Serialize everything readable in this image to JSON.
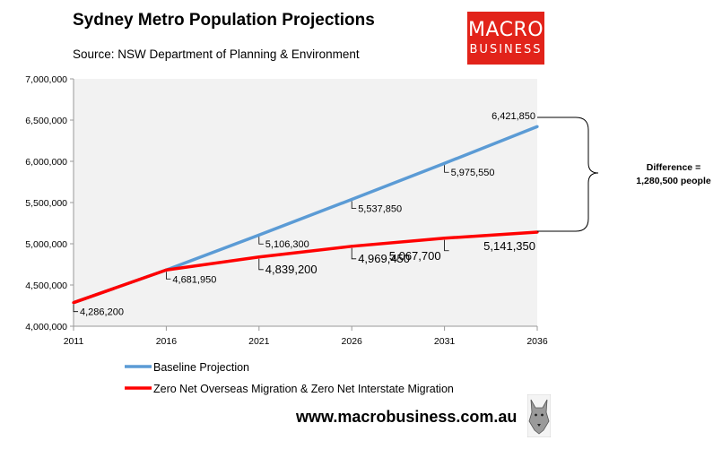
{
  "header": {
    "title": "Sydney Metro Population Projections",
    "source": "Source: NSW Department of Planning & Environment"
  },
  "logo": {
    "line1": "MACRO",
    "line2": "BUSINESS"
  },
  "footer": {
    "website": "www.macrobusiness.com.au",
    "mascot": "wolf-icon"
  },
  "colors": {
    "baseline": "#5b9bd5",
    "zero_migration": "#ff0000",
    "plot_background": "#f2f2f2",
    "logo_bg": "#e2231a"
  },
  "chart_data": {
    "type": "line",
    "title": "Sydney Metro Population Projections",
    "x": [
      2011,
      2016,
      2021,
      2026,
      2031,
      2036
    ],
    "x_tick_labels": [
      "2011",
      "2016",
      "2021",
      "2026",
      "2031",
      "2036"
    ],
    "ylim": [
      4000000,
      7000000
    ],
    "y_tick_labels": [
      "4,000,000",
      "4,500,000",
      "5,000,000",
      "5,500,000",
      "6,000,000",
      "6,500,000",
      "7,000,000"
    ],
    "grid": false,
    "series": [
      {
        "name": "Baseline Projection",
        "color": "#5b9bd5",
        "values": [
          4286200,
          4681950,
          5106300,
          5537850,
          5975550,
          6421850
        ],
        "labels": [
          "",
          "",
          "5,106,300",
          "5,537,850",
          "5,975,550",
          "6,421,850"
        ]
      },
      {
        "name": "Zero Net Overseas Migration & Zero Net Interstate Migration",
        "color": "#ff0000",
        "values": [
          4286200,
          4681950,
          4839200,
          4969450,
          5067700,
          5141350
        ],
        "labels": [
          "4,286,200",
          "4,681,950",
          "4,839,200",
          "4,969,450",
          "5,067,700",
          "5,141,350"
        ]
      }
    ],
    "annotation": {
      "line1": "Difference =",
      "line2": "1,280,500 people"
    },
    "legend_position": "bottom"
  }
}
